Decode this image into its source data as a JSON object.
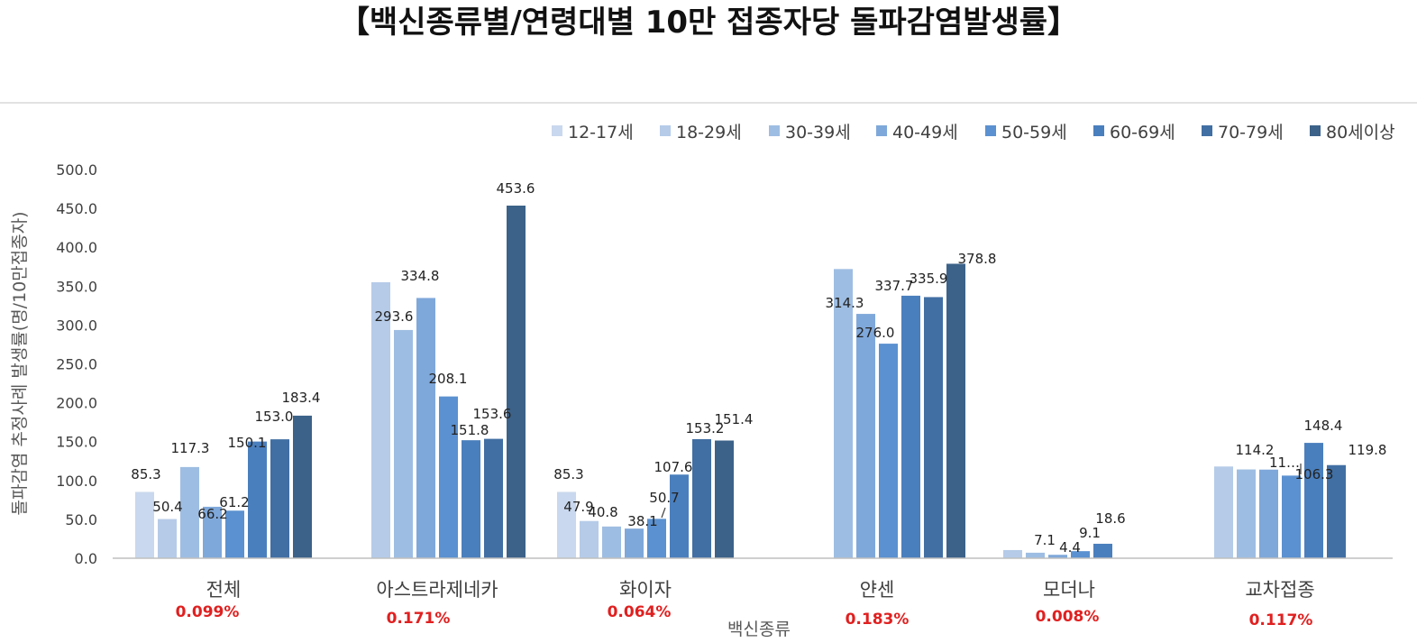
{
  "chart_data": {
    "type": "bar",
    "title": "【백신종류별/연령대별 10만 접종자당 돌파감염발생률】",
    "xlabel": "백신종류",
    "ylabel": "돌파감염 추정사례 발생률(명/10만접종자)",
    "ylim": [
      0,
      500
    ],
    "yticks": [
      "0.0",
      "50.0",
      "100.0",
      "150.0",
      "200.0",
      "250.0",
      "300.0",
      "350.0",
      "400.0",
      "450.0",
      "500.0"
    ],
    "legend_position": "top-right",
    "categories": [
      "전체",
      "아스트라제네카",
      "화이자",
      "얀센",
      "모더나",
      "교차접종"
    ],
    "category_rates": [
      "0.099%",
      "0.171%",
      "0.064%",
      "0.183%",
      "0.008%",
      "0.117%"
    ],
    "series": [
      {
        "name": "12-17세",
        "color": "#c9d8ee",
        "values": [
          85.3,
          null,
          85.3,
          null,
          null,
          null
        ],
        "labels": [
          "85.3",
          "",
          "85.3",
          "",
          "",
          ""
        ]
      },
      {
        "name": "18-29세",
        "color": "#b5cbe8",
        "values": [
          50.4,
          355,
          47.9,
          null,
          10.5,
          118
        ],
        "labels": [
          "50.4",
          "",
          "47.9",
          "",
          "",
          ""
        ]
      },
      {
        "name": "30-39세",
        "color": "#9ebde2",
        "values": [
          117.3,
          293.6,
          40.8,
          372,
          7.1,
          114.2
        ],
        "labels": [
          "117.3",
          "293.6",
          "40.8",
          "",
          "7.1",
          "114.2"
        ]
      },
      {
        "name": "40-49세",
        "color": "#7fa8da",
        "values": [
          66.2,
          334.8,
          38.1,
          314.3,
          4.4,
          114
        ],
        "labels": [
          "66.2",
          "334.8",
          "38.1",
          "314.3",
          "4.4",
          "11…"
        ]
      },
      {
        "name": "50-59세",
        "color": "#5b91d0",
        "values": [
          61.2,
          208.1,
          50.7,
          276.0,
          9.1,
          106.3
        ],
        "labels": [
          "61.2",
          "208.1",
          "50.7",
          "276.0",
          "9.1",
          "106.3"
        ]
      },
      {
        "name": "60-69세",
        "color": "#4a7fbd",
        "values": [
          150.1,
          151.8,
          107.6,
          337.7,
          18.6,
          148.4
        ],
        "labels": [
          "150.1",
          "151.8",
          "107.6",
          "337.7",
          "18.6",
          "148.4"
        ]
      },
      {
        "name": "70-79세",
        "color": "#416fa3",
        "values": [
          153.0,
          153.6,
          153.2,
          335.9,
          null,
          119.8
        ],
        "labels": [
          "153.0",
          "153.6",
          "153.2",
          "335.9",
          "",
          "119.8"
        ]
      },
      {
        "name": "80세이상",
        "color": "#3c6289",
        "values": [
          183.4,
          453.6,
          151.4,
          378.8,
          null,
          null
        ],
        "labels": [
          "183.4",
          "453.6",
          "151.4",
          "378.8",
          "",
          ""
        ]
      }
    ]
  }
}
